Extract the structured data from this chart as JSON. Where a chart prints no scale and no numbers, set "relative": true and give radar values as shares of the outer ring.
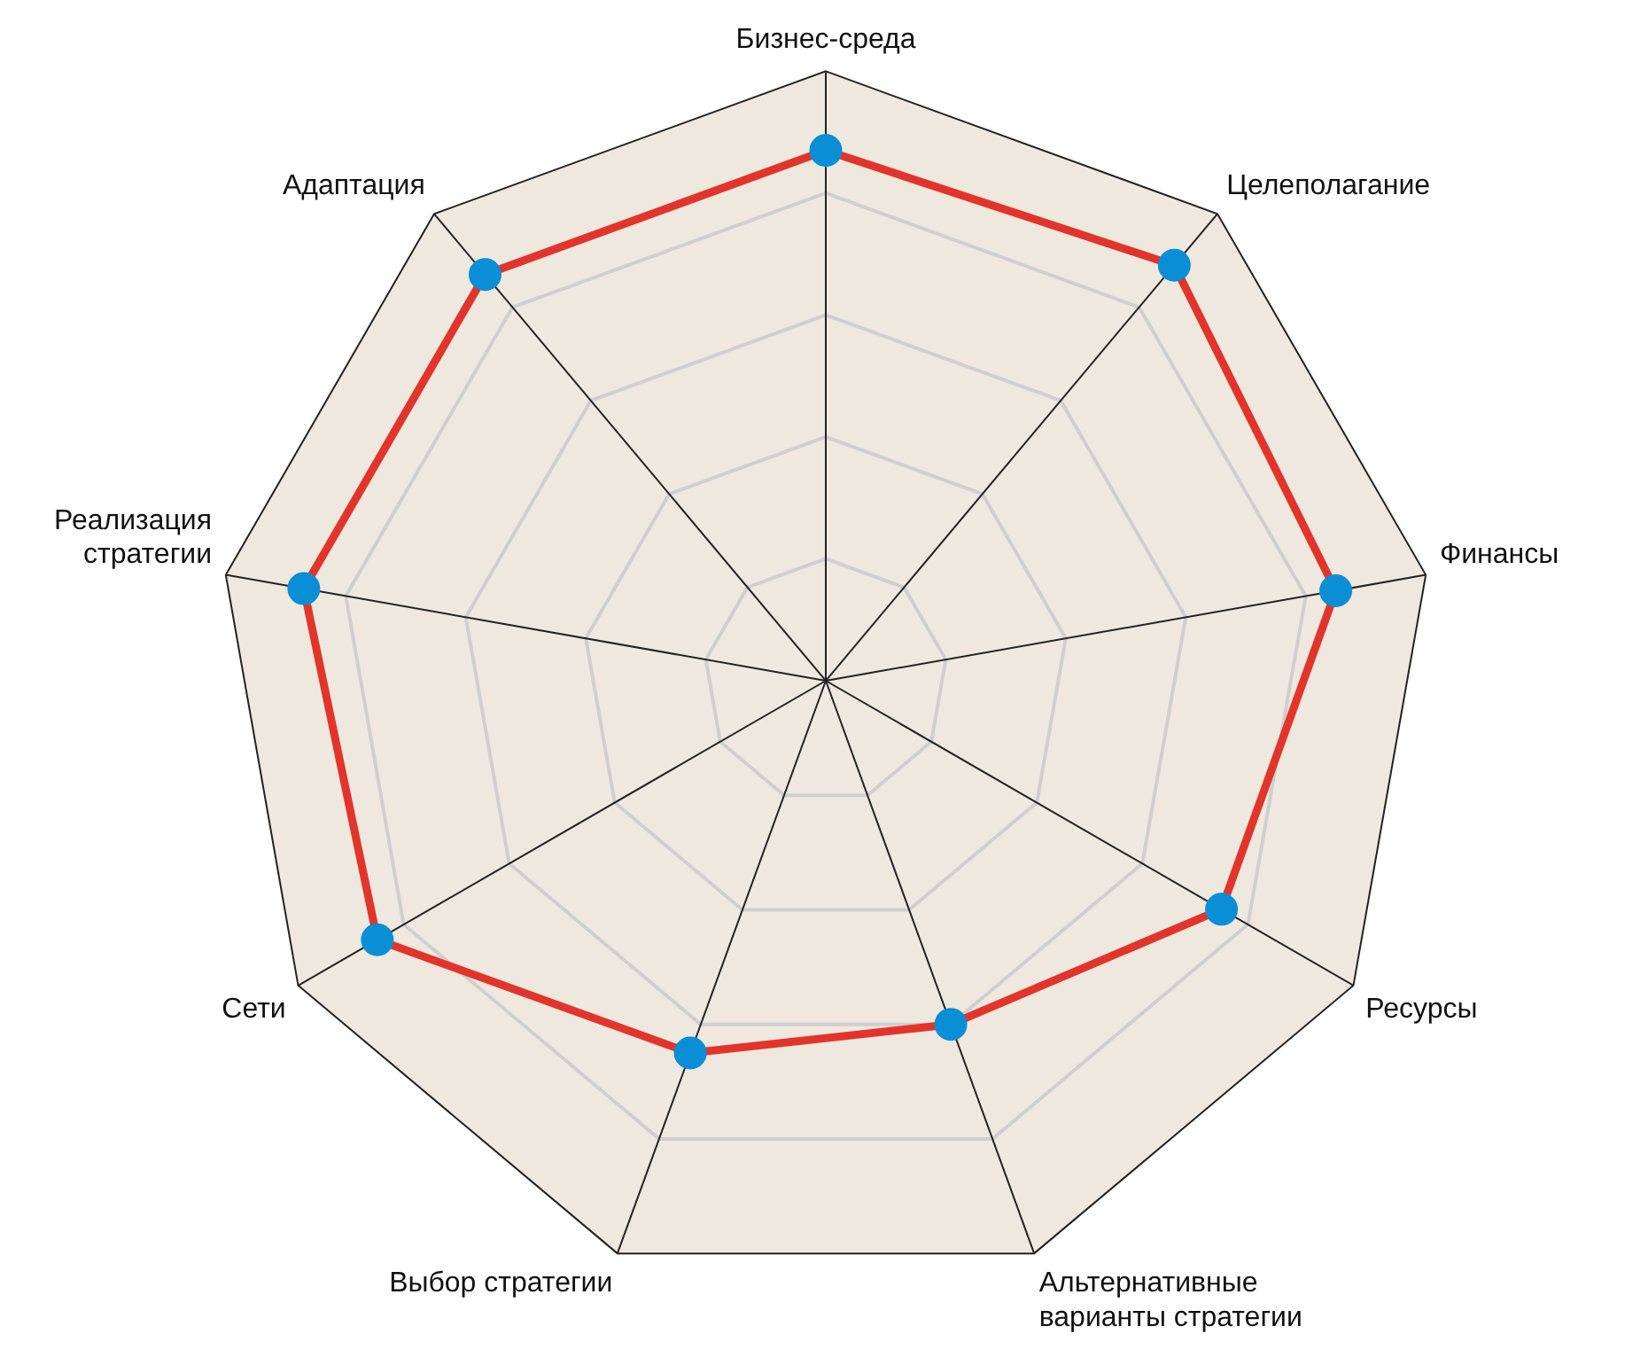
{
  "chart_data": {
    "type": "radar",
    "relative": true,
    "categories": [
      "Бизнес-среда",
      "Целеполагание",
      "Финансы",
      "Ресурсы",
      "Альтернативные варианты стратегии",
      "Выбор стратегии",
      "Сети",
      "Реализация стратегии",
      "Адаптация"
    ],
    "series": [
      {
        "color": "#e3342b",
        "values": [
          0.87,
          0.89,
          0.85,
          0.75,
          0.6,
          0.65,
          0.85,
          0.87,
          0.87
        ]
      }
    ],
    "marker": "circle",
    "legend": false
  }
}
